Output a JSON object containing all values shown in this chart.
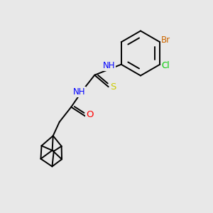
{
  "background_color": "#e8e8e8",
  "bond_color": "#000000",
  "atom_colors": {
    "N": "#0000ff",
    "O": "#ff0000",
    "S": "#cccc00",
    "Cl": "#00cc00",
    "Br": "#cc6600",
    "C": "#000000",
    "H": "#0000ff"
  },
  "font_size": 8.5,
  "line_width": 1.4
}
